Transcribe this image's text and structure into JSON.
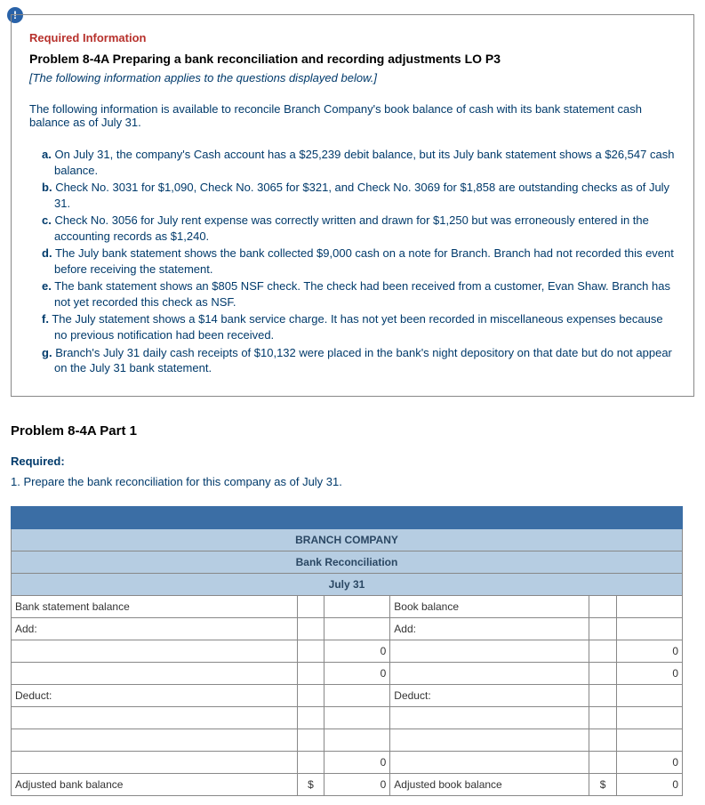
{
  "badge": "!",
  "box": {
    "required_label": "Required Information",
    "problem_title": "Problem 8-4A Preparing a bank reconciliation and recording adjustments LO P3",
    "subhead": "[The following information applies to the questions displayed below.]",
    "intro": "The following information is available to reconcile Branch Company's book balance of cash with its bank statement cash balance as of July 31.",
    "items": [
      {
        "letter": "a.",
        "text": "On July 31, the company's Cash account has a $25,239 debit balance, but its July bank statement shows a $26,547 cash balance."
      },
      {
        "letter": "b.",
        "text": "Check No. 3031 for $1,090, Check No. 3065 for $321, and Check No. 3069 for $1,858 are outstanding checks as of July 31."
      },
      {
        "letter": "c.",
        "text": "Check No. 3056 for July rent expense was correctly written and drawn for $1,250 but was erroneously entered in the accounting records as $1,240."
      },
      {
        "letter": "d.",
        "text": "The July bank statement shows the bank collected $9,000 cash on a note for Branch. Branch had not recorded this event before receiving the statement."
      },
      {
        "letter": "e.",
        "text": "The bank statement shows an $805 NSF check. The check had been received from a customer, Evan Shaw. Branch has not yet recorded this check as NSF."
      },
      {
        "letter": "f.",
        "text": "The July statement shows a $14 bank service charge. It has not yet been recorded in miscellaneous expenses because no previous notification had been received."
      },
      {
        "letter": "g.",
        "text": "Branch's July 31 daily cash receipts of $10,132 were placed in the bank's night depository on that date but do not appear on the July 31 bank statement."
      }
    ]
  },
  "part_title": "Problem 8-4A Part 1",
  "required2": "Required:",
  "instruction": "1. Prepare the bank reconciliation for this company as of July 31.",
  "table": {
    "company": "BRANCH COMPANY",
    "title": "Bank Reconciliation",
    "date": "July 31",
    "bank_label": "Bank statement balance",
    "book_label": "Book balance",
    "add": "Add:",
    "deduct": "Deduct:",
    "adj_bank": "Adjusted bank balance",
    "adj_book": "Adjusted book balance",
    "zero": "0",
    "cur": "$",
    "colors": {
      "header_bg": "#3b6ea5",
      "title_bg": "#b6cde2",
      "border": "#888888",
      "cell_bg": "#ffffff"
    }
  }
}
